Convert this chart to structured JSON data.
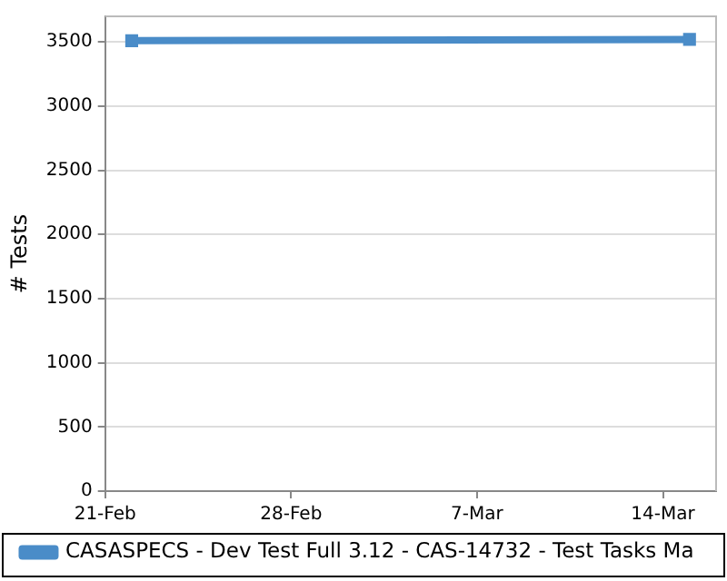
{
  "chart_data": {
    "type": "line",
    "ylabel": "# Tests",
    "x": [
      "--02-22",
      "--03-15"
    ],
    "series": [
      {
        "name": "CASASPECS - Dev Test Full 3.12 - CAS-14732 - Test Tasks Ma",
        "color": "#4a8cc8",
        "values": [
          3510,
          3520
        ]
      }
    ],
    "xlim": [
      "--02-21",
      "--03-16"
    ],
    "xticks": [
      {
        "value": "--02-21",
        "label": "21-Feb"
      },
      {
        "value": "--02-28",
        "label": "28-Feb"
      },
      {
        "value": "--03-07",
        "label": "7-Mar"
      },
      {
        "value": "--03-14",
        "label": "14-Mar"
      }
    ],
    "ylim": [
      0,
      3700
    ],
    "yticks": [
      0,
      500,
      1000,
      1500,
      2000,
      2500,
      3000,
      3500
    ],
    "grid": "y",
    "legend": "bottom",
    "marker": "square",
    "line_style": "solid"
  }
}
